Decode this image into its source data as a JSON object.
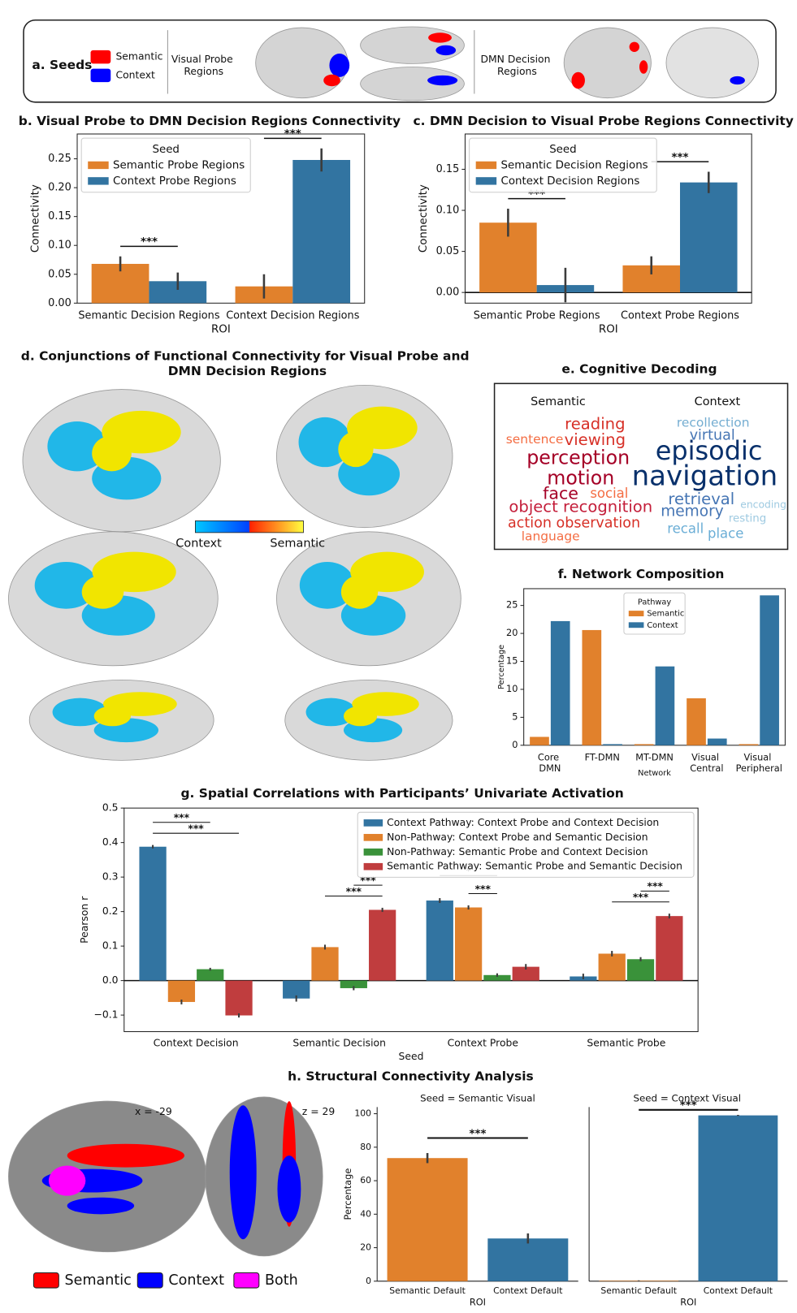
{
  "seeds": {
    "title": "a. Seeds",
    "legend": [
      {
        "label": "Semantic",
        "color": "#ff0000"
      },
      {
        "label": "Context",
        "color": "#0000ff"
      }
    ],
    "regions": [
      "Visual Probe Regions",
      "DMN Decision Regions"
    ]
  },
  "conjunctions": {
    "title": "d. Conjunctions of Functional Connectivity for Visual Probe and DMN Decision Regions",
    "colorbar": [
      "Context",
      "Semantic"
    ]
  },
  "decoding": {
    "title": "e. Cognitive Decoding",
    "groups": [
      {
        "name": "Semantic",
        "terms": [
          {
            "text": "reading",
            "color": "#d73027"
          },
          {
            "text": "sentence",
            "color": "#f46d43"
          },
          {
            "text": "viewing",
            "color": "#d73027"
          },
          {
            "text": "perception",
            "color": "#a50026"
          },
          {
            "text": "motion",
            "color": "#a50026"
          },
          {
            "text": "face",
            "color": "#a50026"
          },
          {
            "text": "social",
            "color": "#f46d43"
          },
          {
            "text": "object recognition",
            "color": "#c41e3a"
          },
          {
            "text": "action observation",
            "color": "#d73027"
          },
          {
            "text": "language",
            "color": "#f46d43"
          }
        ]
      },
      {
        "name": "Context",
        "terms": [
          {
            "text": "recollection",
            "color": "#74add1"
          },
          {
            "text": "virtual",
            "color": "#4575b4"
          },
          {
            "text": "episodic",
            "color": "#08306b"
          },
          {
            "text": "navigation",
            "color": "#08306b"
          },
          {
            "text": "retrieval",
            "color": "#4575b4"
          },
          {
            "text": "encoding",
            "color": "#9ecae1"
          },
          {
            "text": "memory",
            "color": "#4575b4"
          },
          {
            "text": "resting",
            "color": "#9ecae1"
          },
          {
            "text": "recall",
            "color": "#6baed6"
          },
          {
            "text": "place",
            "color": "#6baed6"
          }
        ]
      }
    ]
  },
  "structural": {
    "title": "h. Structural Connectivity Analysis",
    "slices": [
      "x = -29",
      "z = 29"
    ],
    "legend": [
      {
        "label": "Semantic",
        "color": "#ff0000"
      },
      {
        "label": "Context",
        "color": "#0000ff"
      },
      {
        "label": "Both",
        "color": "#ff00ff"
      }
    ]
  },
  "chart_data": [
    {
      "type": "bar",
      "title": "b. Visual Probe to DMN Decision Regions Connectivity",
      "y_label": "Connectivity",
      "x_label": "ROI",
      "categories": [
        "Semantic Decision Regions",
        "Context Decision Regions"
      ],
      "legend_title": "Seed",
      "legend": "upper left",
      "series": [
        {
          "name": "Semantic Probe Regions",
          "color": "#e1812c",
          "values": [
            0.068,
            0.029
          ],
          "errors": [
            0.013,
            0.021
          ]
        },
        {
          "name": "Context Probe Regions",
          "color": "#3274a1",
          "values": [
            0.038,
            0.248
          ],
          "errors": [
            0.015,
            0.02
          ]
        }
      ],
      "ylim": [
        0,
        0.293
      ],
      "yticks": [
        {
          "value": 0,
          "label": "0.00"
        },
        0.05,
        {
          "value": 0.1,
          "label": "0.10"
        },
        0.15,
        {
          "value": 0.2,
          "label": "0.20"
        },
        0.25
      ],
      "annotations": [
        {
          "text": "***",
          "category": 0,
          "pair": [
            0,
            1
          ]
        },
        {
          "text": "***",
          "category": 1,
          "pair": [
            0,
            1
          ]
        }
      ]
    },
    {
      "type": "bar",
      "title": "c. DMN Decision to Visual Probe Regions Connectivity",
      "y_label": "Connectivity",
      "x_label": "ROI",
      "categories": [
        "Semantic Probe Regions",
        "Context Probe Regions"
      ],
      "legend_title": "Seed",
      "legend": "upper left",
      "series": [
        {
          "name": "Semantic Decision Regions",
          "color": "#e1812c",
          "values": [
            0.085,
            0.033
          ],
          "errors": [
            0.017,
            0.011
          ]
        },
        {
          "name": "Context Decision Regions",
          "color": "#3274a1",
          "values": [
            0.009,
            0.134
          ],
          "errors": [
            0.021,
            0.013
          ]
        }
      ],
      "ylim": [
        -0.013,
        0.193
      ],
      "yticks": [
        {
          "value": 0,
          "label": "0.00"
        },
        0.05,
        {
          "value": 0.1,
          "label": "0.10"
        },
        0.15
      ],
      "annotations": [
        {
          "text": "***",
          "category": 0,
          "pair": [
            0,
            1
          ]
        },
        {
          "text": "***",
          "category": 1,
          "pair": [
            0,
            1
          ]
        }
      ]
    },
    {
      "type": "bar",
      "title": "f. Network Composition",
      "y_label": "Percentage",
      "x_label": "Network",
      "categories": [
        "Core DMN",
        "FT-DMN",
        "MT-DMN",
        "Visual Central",
        "Visual Peripheral"
      ],
      "legend_title": "Pathway",
      "legend": "upper center",
      "series": [
        {
          "name": "Semantic",
          "color": "#e1812c",
          "values": [
            1.5,
            20.6,
            0.2,
            8.4,
            0.2
          ]
        },
        {
          "name": "Context",
          "color": "#3274a1",
          "values": [
            22.2,
            0.2,
            14.1,
            1.2,
            26.8
          ]
        }
      ],
      "ylim": [
        0,
        28
      ],
      "yticks": [
        0,
        5,
        10,
        15,
        20,
        25
      ]
    },
    {
      "type": "bar",
      "title": "g. Spatial Correlations with Participants’ Univariate Activation",
      "y_label": "Pearson r",
      "x_label": "Seed",
      "categories": [
        "Context Decision",
        "Semantic Decision",
        "Context Probe",
        "Semantic Probe"
      ],
      "legend": "upper right",
      "series": [
        {
          "name": "Context Pathway: Context Probe and Context Decision",
          "color": "#3274a1",
          "values": [
            0.388,
            -0.052,
            0.232,
            0.012
          ],
          "errors": [
            0.005,
            0.009,
            0.007,
            0.008
          ]
        },
        {
          "name": "Non-Pathway: Context Probe and Semantic Decision",
          "color": "#e1812c",
          "values": [
            -0.062,
            0.097,
            0.212,
            0.078
          ],
          "errors": [
            0.007,
            0.007,
            0.006,
            0.008
          ]
        },
        {
          "name": "Non-Pathway: Semantic Probe and Context Decision",
          "color": "#3a923a",
          "values": [
            0.033,
            -0.022,
            0.016,
            0.062
          ],
          "errors": [
            0.004,
            0.006,
            0.005,
            0.006
          ]
        },
        {
          "name": "Semantic Pathway: Semantic Probe and Semantic Decision",
          "color": "#c03d3e",
          "values": [
            -0.101,
            0.205,
            0.04,
            0.187
          ],
          "errors": [
            0.006,
            0.006,
            0.008,
            0.007
          ]
        }
      ],
      "ylim": [
        -0.148,
        0.5
      ],
      "yticks": [
        {
          "value": -0.1,
          "label": "−0.1"
        },
        {
          "value": 0,
          "label": "0.0"
        },
        0.1,
        0.2,
        0.3,
        0.4,
        0.5
      ],
      "annotations": [
        {
          "text": "***",
          "category": 0,
          "pair": [
            0,
            3
          ]
        },
        {
          "text": "***",
          "category": 0,
          "pair": [
            0,
            2
          ]
        },
        {
          "text": "***",
          "category": 1,
          "pair": [
            1,
            3
          ]
        },
        {
          "text": "***",
          "category": 1,
          "pair": [
            2,
            3
          ]
        },
        {
          "text": "***",
          "category": 2,
          "pair": [
            1,
            2
          ]
        },
        {
          "text": "*",
          "category": 2,
          "pair": [
            0,
            2
          ]
        },
        {
          "text": "***",
          "category": 3,
          "pair": [
            1,
            3
          ]
        },
        {
          "text": "***",
          "category": 3,
          "pair": [
            2,
            3
          ]
        }
      ]
    },
    {
      "type": "bar",
      "title": "Seed = Semantic Visual",
      "y_label": "Percentage",
      "x_label": "ROI",
      "categories": [
        "Semantic Default",
        "Context Default"
      ],
      "values": [
        73.5,
        25.5
      ],
      "errors": [
        3,
        3
      ],
      "colors": [
        "#e1812c",
        "#3274a1"
      ],
      "ylim": [
        0,
        104
      ],
      "yticks": [
        0,
        20,
        40,
        60,
        80,
        100
      ],
      "annotations": [
        {
          "text": "***",
          "categories": [
            0,
            1
          ]
        }
      ]
    },
    {
      "type": "bar",
      "title": "Seed = Context Visual",
      "x_label": "ROI",
      "categories": [
        "Semantic Default",
        "Context Default"
      ],
      "values": [
        0.3,
        99
      ],
      "errors": [
        0.2,
        0.3
      ],
      "colors": [
        "#e1812c",
        "#3274a1"
      ],
      "ylim": [
        0,
        104
      ],
      "annotations": [
        {
          "text": "***",
          "categories": [
            0,
            1
          ]
        }
      ]
    }
  ]
}
